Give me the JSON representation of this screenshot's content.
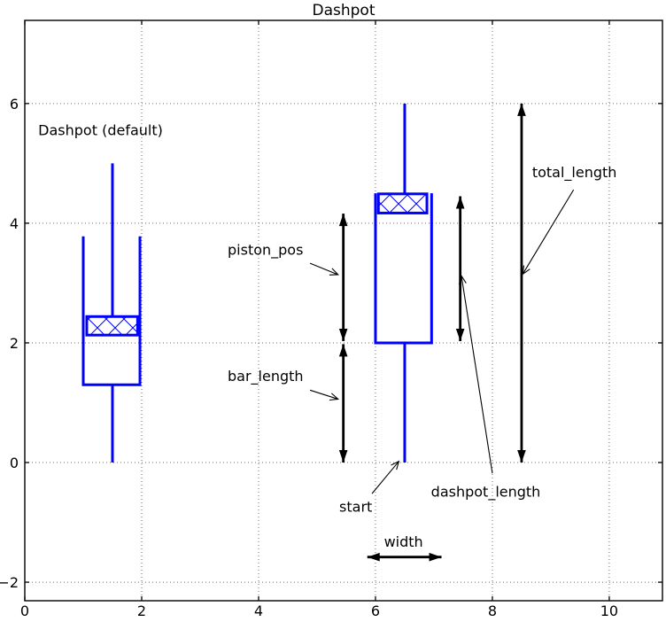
{
  "figure": {
    "background": "#ffffff",
    "axes_color": "#000000",
    "grid_color": "#6e6e6e",
    "shape_color": "#0000ff",
    "annotation_color": "#000000",
    "xtick_labels": [
      "0",
      "2",
      "4",
      "6",
      "8",
      "10"
    ],
    "ytick_labels": [
      "−2",
      "0",
      "2",
      "4",
      "6"
    ]
  },
  "chart_data": {
    "type": "line",
    "title": "Dashpot",
    "xlabel": "",
    "ylabel": "",
    "xlim": [
      0,
      10.91
    ],
    "ylim": [
      -2.31,
      7.39
    ],
    "xticks": [
      0,
      2,
      4,
      6,
      8,
      10
    ],
    "yticks": [
      -2,
      0,
      2,
      4,
      6
    ],
    "grid": "dotted",
    "legend": "none",
    "figures": [
      {
        "name": "dashpot-default",
        "color": "#0000ff",
        "linewidth": 3,
        "polylines": [
          [
            [
              1.5,
              0.0
            ],
            [
              1.5,
              1.3
            ]
          ],
          [
            [
              1.0,
              3.78
            ],
            [
              1.0,
              1.3
            ],
            [
              1.97,
              1.3
            ],
            [
              1.97,
              3.78
            ]
          ],
          [
            [
              1.5,
              2.44
            ],
            [
              1.5,
              5.0
            ]
          ]
        ],
        "piston": {
          "x1": 1.06,
          "y1": 2.13,
          "x2": 1.93,
          "y2": 2.44,
          "hatch": "x"
        }
      },
      {
        "name": "dashpot-annotated",
        "color": "#0000ff",
        "linewidth": 3,
        "polylines": [
          [
            [
              6.5,
              0.0
            ],
            [
              6.5,
              2.0
            ]
          ],
          [
            [
              6.0,
              4.5
            ],
            [
              6.0,
              2.0
            ],
            [
              6.96,
              2.0
            ],
            [
              6.96,
              4.5
            ]
          ],
          [
            [
              6.5,
              4.49
            ],
            [
              6.5,
              6.0
            ]
          ]
        ],
        "piston": {
          "x1": 6.05,
          "y1": 4.17,
          "x2": 6.88,
          "y2": 4.49,
          "hatch": "x"
        }
      }
    ],
    "dimension_arrows": [
      {
        "name": "piston_pos",
        "from": [
          5.45,
          2.03
        ],
        "to": [
          5.45,
          4.16
        ]
      },
      {
        "name": "bar_length",
        "from": [
          5.45,
          0.0
        ],
        "to": [
          5.45,
          1.98
        ]
      },
      {
        "name": "dashpot_length",
        "from": [
          7.45,
          2.03
        ],
        "to": [
          7.45,
          4.45
        ]
      },
      {
        "name": "total_length",
        "from": [
          8.5,
          0.0
        ],
        "to": [
          8.5,
          6.0
        ]
      },
      {
        "name": "width",
        "from": [
          5.86,
          -1.58
        ],
        "to": [
          7.13,
          -1.58
        ]
      }
    ],
    "annotations": [
      {
        "name": "dashpot-default-label",
        "text": "Dashpot (default)",
        "x": 0.23,
        "y": 5.47,
        "anchor": "start"
      },
      {
        "name": "piston_pos",
        "text": "piston_pos",
        "x": 3.47,
        "y": 3.47,
        "anchor": "start",
        "leader": {
          "from": [
            4.88,
            3.33
          ],
          "to": [
            5.36,
            3.14
          ]
        }
      },
      {
        "name": "bar_length",
        "text": "bar_length",
        "x": 3.47,
        "y": 1.36,
        "anchor": "start",
        "leader": {
          "from": [
            4.88,
            1.21
          ],
          "to": [
            5.36,
            1.06
          ]
        }
      },
      {
        "name": "total_length",
        "text": "total_length",
        "x": 8.68,
        "y": 4.77,
        "anchor": "start",
        "leader": {
          "from": [
            9.39,
            4.56
          ],
          "to": [
            8.52,
            3.15
          ]
        }
      },
      {
        "name": "dashpot_length",
        "text": "dashpot_length",
        "x": 6.95,
        "y": -0.57,
        "anchor": "start",
        "leader": {
          "from": [
            8.0,
            -0.18
          ],
          "to": [
            7.47,
            3.12
          ]
        }
      },
      {
        "name": "start",
        "text": "start",
        "x": 5.38,
        "y": -0.82,
        "anchor": "start",
        "leader": {
          "from": [
            5.94,
            -0.52
          ],
          "to": [
            6.4,
            0.02
          ]
        }
      },
      {
        "name": "width",
        "text": "width",
        "x": 6.48,
        "y": -1.41,
        "anchor": "middle"
      }
    ]
  }
}
